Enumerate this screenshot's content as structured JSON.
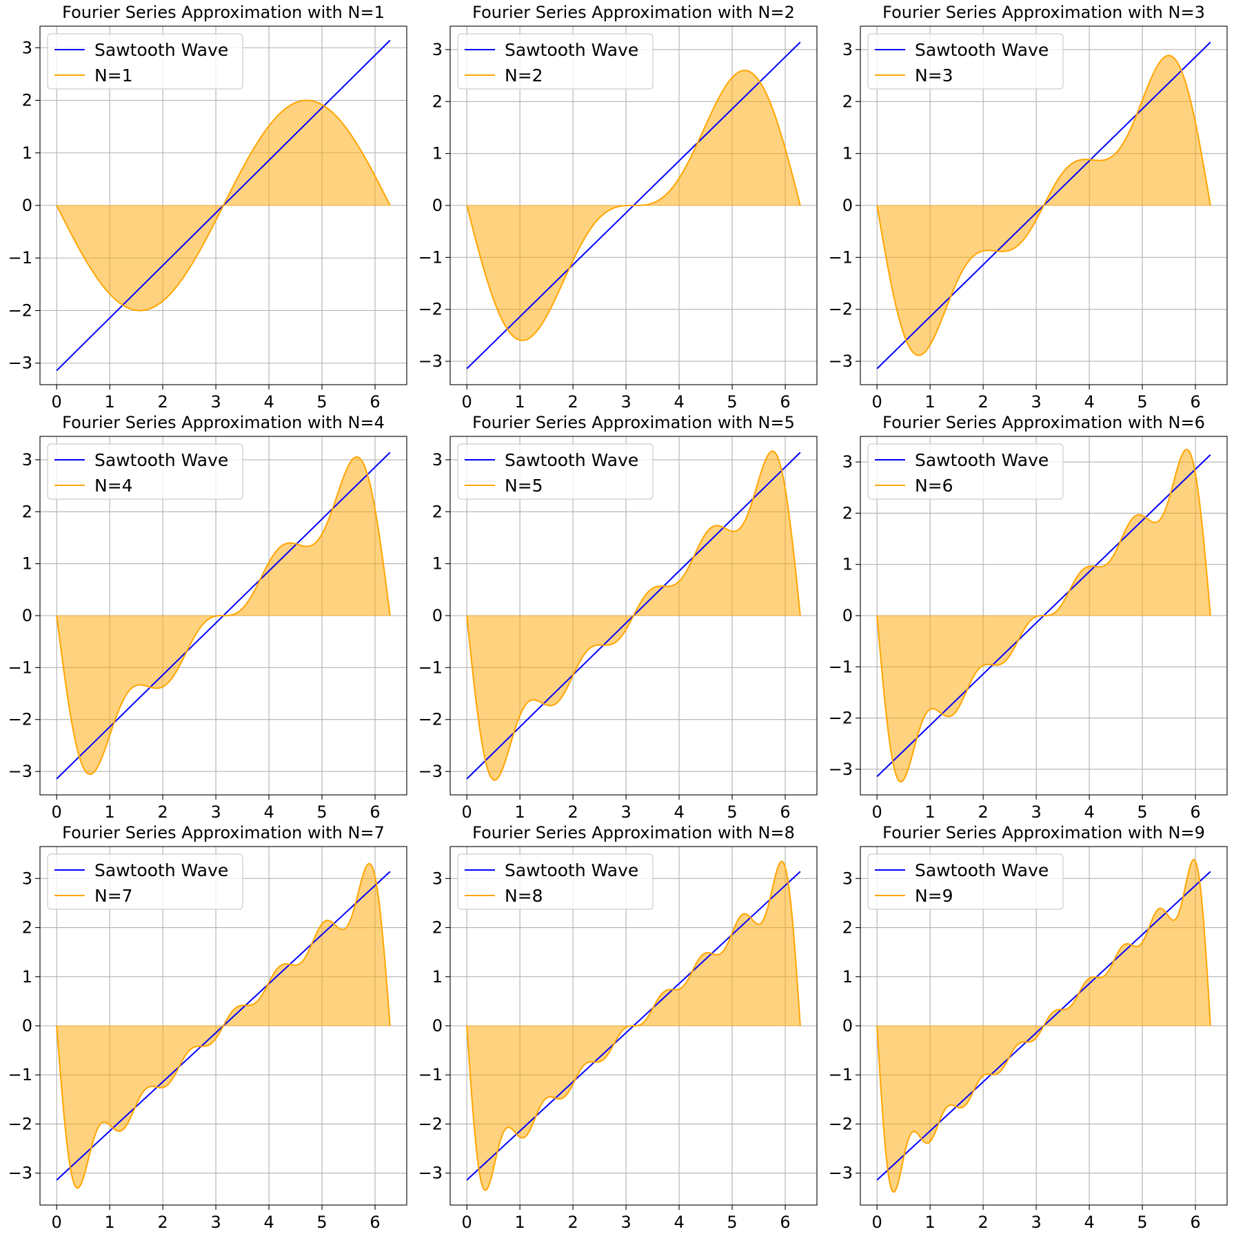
{
  "colors": {
    "sawtooth": "#0000ff",
    "approximation": "#ffa500",
    "fill": "#ffa500",
    "fill_opacity": 0.5,
    "grid": "#b0b0b0"
  },
  "chart_data": [
    {
      "type": "line",
      "title": "Fourier Series Approximation with N=1",
      "n_terms": 1,
      "x_range": [
        0,
        6.283
      ],
      "xlim": [
        -0.314,
        6.597
      ],
      "ylim": [
        -3.41,
        3.41
      ],
      "xticks": [
        0,
        1,
        2,
        3,
        4,
        5,
        6
      ],
      "yticks": [
        -3,
        -2,
        -1,
        0,
        1,
        2,
        3
      ],
      "grid": true,
      "legend": "upper left",
      "fill_between": "approximation and y=0",
      "series": [
        {
          "name": "Sawtooth Wave",
          "formula": "y = x - π"
        },
        {
          "name": "N=1",
          "formula": "y = -2 Σ_{k=1..N} sin(kx)/k"
        }
      ]
    },
    {
      "type": "line",
      "title": "Fourier Series Approximation with N=2",
      "n_terms": 2,
      "x_range": [
        0,
        6.283
      ],
      "xlim": [
        -0.314,
        6.597
      ],
      "ylim": [
        -3.45,
        3.45
      ],
      "xticks": [
        0,
        1,
        2,
        3,
        4,
        5,
        6
      ],
      "yticks": [
        -3,
        -2,
        -1,
        0,
        1,
        2,
        3
      ],
      "grid": true,
      "legend": "upper left",
      "fill_between": "approximation and y=0",
      "series": [
        {
          "name": "Sawtooth Wave",
          "formula": "y = x - π"
        },
        {
          "name": "N=2",
          "formula": "y = -2 Σ_{k=1..N} sin(kx)/k"
        }
      ]
    },
    {
      "type": "line",
      "title": "Fourier Series Approximation with N=3",
      "n_terms": 3,
      "x_range": [
        0,
        6.283
      ],
      "xlim": [
        -0.314,
        6.597
      ],
      "ylim": [
        -3.45,
        3.45
      ],
      "xticks": [
        0,
        1,
        2,
        3,
        4,
        5,
        6
      ],
      "yticks": [
        -3,
        -2,
        -1,
        0,
        1,
        2,
        3
      ],
      "grid": true,
      "legend": "upper left",
      "fill_between": "approximation and y=0",
      "series": [
        {
          "name": "Sawtooth Wave",
          "formula": "y = x - π"
        },
        {
          "name": "N=3",
          "formula": "y = -2 Σ_{k=1..N} sin(kx)/k"
        }
      ]
    },
    {
      "type": "line",
      "title": "Fourier Series Approximation with N=4",
      "n_terms": 4,
      "x_range": [
        0,
        6.283
      ],
      "xlim": [
        -0.314,
        6.597
      ],
      "ylim": [
        -3.45,
        3.45
      ],
      "xticks": [
        0,
        1,
        2,
        3,
        4,
        5,
        6
      ],
      "yticks": [
        -3,
        -2,
        -1,
        0,
        1,
        2,
        3
      ],
      "grid": true,
      "legend": "upper left",
      "fill_between": "approximation and y=0",
      "series": [
        {
          "name": "Sawtooth Wave",
          "formula": "y = x - π"
        },
        {
          "name": "N=4",
          "formula": "y = -2 Σ_{k=1..N} sin(kx)/k"
        }
      ]
    },
    {
      "type": "line",
      "title": "Fourier Series Approximation with N=5",
      "n_terms": 5,
      "x_range": [
        0,
        6.283
      ],
      "xlim": [
        -0.314,
        6.597
      ],
      "ylim": [
        -3.45,
        3.45
      ],
      "xticks": [
        0,
        1,
        2,
        3,
        4,
        5,
        6
      ],
      "yticks": [
        -3,
        -2,
        -1,
        0,
        1,
        2,
        3
      ],
      "grid": true,
      "legend": "upper left",
      "fill_between": "approximation and y=0",
      "series": [
        {
          "name": "Sawtooth Wave",
          "formula": "y = x - π"
        },
        {
          "name": "N=5",
          "formula": "y = -2 Σ_{k=1..N} sin(kx)/k"
        }
      ]
    },
    {
      "type": "line",
      "title": "Fourier Series Approximation with N=6",
      "n_terms": 6,
      "x_range": [
        0,
        6.283
      ],
      "xlim": [
        -0.314,
        6.597
      ],
      "ylim": [
        -3.5,
        3.5
      ],
      "xticks": [
        0,
        1,
        2,
        3,
        4,
        5,
        6
      ],
      "yticks": [
        -3,
        -2,
        -1,
        0,
        1,
        2,
        3
      ],
      "grid": true,
      "legend": "upper left",
      "fill_between": "approximation and y=0",
      "series": [
        {
          "name": "Sawtooth Wave",
          "formula": "y = x - π"
        },
        {
          "name": "N=6",
          "formula": "y = -2 Σ_{k=1..N} sin(kx)/k"
        }
      ]
    },
    {
      "type": "line",
      "title": "Fourier Series Approximation with N=7",
      "n_terms": 7,
      "x_range": [
        0,
        6.283
      ],
      "xlim": [
        -0.314,
        6.597
      ],
      "ylim": [
        -3.65,
        3.65
      ],
      "xticks": [
        0,
        1,
        2,
        3,
        4,
        5,
        6
      ],
      "yticks": [
        -3,
        -2,
        -1,
        0,
        1,
        2,
        3
      ],
      "grid": true,
      "legend": "upper left",
      "fill_between": "approximation and y=0",
      "series": [
        {
          "name": "Sawtooth Wave",
          "formula": "y = x - π"
        },
        {
          "name": "N=7",
          "formula": "y = -2 Σ_{k=1..N} sin(kx)/k"
        }
      ]
    },
    {
      "type": "line",
      "title": "Fourier Series Approximation with N=8",
      "n_terms": 8,
      "x_range": [
        0,
        6.283
      ],
      "xlim": [
        -0.314,
        6.597
      ],
      "ylim": [
        -3.65,
        3.65
      ],
      "xticks": [
        0,
        1,
        2,
        3,
        4,
        5,
        6
      ],
      "yticks": [
        -3,
        -2,
        -1,
        0,
        1,
        2,
        3
      ],
      "grid": true,
      "legend": "upper left",
      "fill_between": "approximation and y=0",
      "series": [
        {
          "name": "Sawtooth Wave",
          "formula": "y = x - π"
        },
        {
          "name": "N=8",
          "formula": "y = -2 Σ_{k=1..N} sin(kx)/k"
        }
      ]
    },
    {
      "type": "line",
      "title": "Fourier Series Approximation with N=9",
      "n_terms": 9,
      "x_range": [
        0,
        6.283
      ],
      "xlim": [
        -0.314,
        6.597
      ],
      "ylim": [
        -3.65,
        3.65
      ],
      "xticks": [
        0,
        1,
        2,
        3,
        4,
        5,
        6
      ],
      "yticks": [
        -3,
        -2,
        -1,
        0,
        1,
        2,
        3
      ],
      "grid": true,
      "legend": "upper left",
      "fill_between": "approximation and y=0",
      "series": [
        {
          "name": "Sawtooth Wave",
          "formula": "y = x - π"
        },
        {
          "name": "N=9",
          "formula": "y = -2 Σ_{k=1..N} sin(kx)/k"
        }
      ]
    }
  ]
}
